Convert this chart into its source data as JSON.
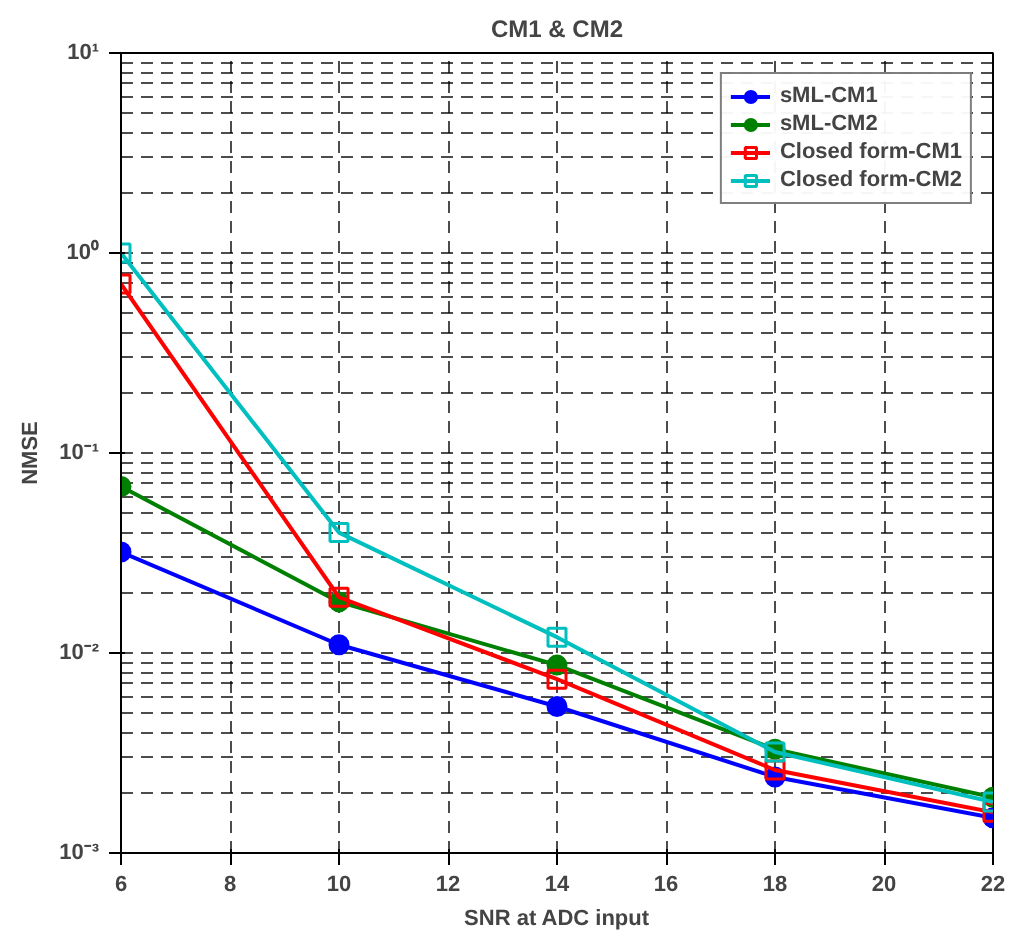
{
  "chart_data": {
    "type": "line",
    "title": "CM1 & CM2",
    "xlabel": "SNR at ADC input",
    "ylabel": "NMSE",
    "x": [
      6,
      10,
      14,
      18,
      22
    ],
    "series": [
      {
        "name": "sML-CM1",
        "color": "#0000ff",
        "marker": "circle",
        "values": [
          0.032,
          0.011,
          0.0054,
          0.0024,
          0.0015
        ]
      },
      {
        "name": "sML-CM2",
        "color": "#008000",
        "marker": "circle",
        "values": [
          0.068,
          0.018,
          0.0087,
          0.0033,
          0.0019
        ]
      },
      {
        "name": "Closed form-CM1",
        "color": "#ff0000",
        "marker": "square",
        "values": [
          0.7,
          0.019,
          0.0074,
          0.0026,
          0.0016
        ]
      },
      {
        "name": "Closed form-CM2",
        "color": "#00bfbf",
        "marker": "square",
        "values": [
          1.0,
          0.04,
          0.012,
          0.0032,
          0.0018
        ]
      }
    ],
    "xlim": [
      6,
      22
    ],
    "xticks": [
      6,
      8,
      10,
      12,
      14,
      16,
      18,
      20,
      22
    ],
    "ylim": [
      0.001,
      10
    ],
    "yticks": [
      {
        "value": 0.001,
        "label": "10⁻³"
      },
      {
        "value": 0.01,
        "label": "10⁻²"
      },
      {
        "value": 0.1,
        "label": "10⁻¹"
      },
      {
        "value": 1,
        "label": "10⁰"
      },
      {
        "value": 10,
        "label": "10¹"
      }
    ],
    "log": "y",
    "grid": true,
    "legend": "top right",
    "line_style": "solid"
  }
}
